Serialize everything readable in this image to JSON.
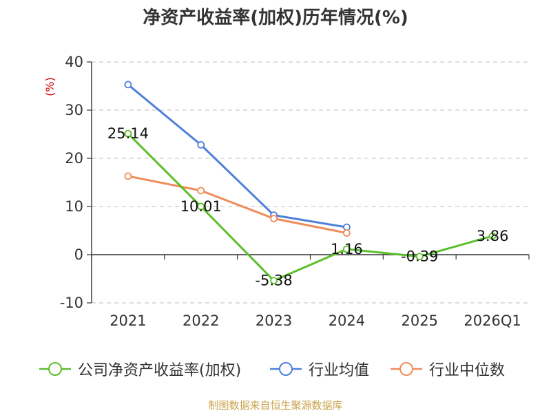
{
  "title": "净资产收益率(加权)历年情况(%)",
  "footer": "制图数据来自恒生聚源数据库",
  "chart_data": {
    "type": "line",
    "categories": [
      "2021",
      "2022",
      "2023",
      "2024",
      "2025",
      "2026Q1"
    ],
    "ylabel": "(%)",
    "ylim": [
      -10,
      40
    ],
    "yticks": [
      -10,
      0,
      10,
      20,
      30,
      40
    ],
    "grid": true,
    "legend_position": "bottom",
    "series": [
      {
        "name": "公司净资产收益率(加权)",
        "color": "#5bbf2a",
        "values": [
          25.14,
          10.01,
          -5.38,
          1.16,
          -0.39,
          3.86
        ],
        "data_labels": [
          "25.14",
          "10.01",
          "-5.38",
          "1.16",
          "-0.39",
          "3.86"
        ]
      },
      {
        "name": "行业均值",
        "color": "#4f7fd9",
        "values": [
          35.3,
          22.8,
          8.2,
          5.7,
          null,
          null
        ]
      },
      {
        "name": "行业中位数",
        "color": "#f08c5a",
        "values": [
          16.3,
          13.3,
          7.5,
          4.5,
          null,
          null
        ]
      }
    ]
  }
}
